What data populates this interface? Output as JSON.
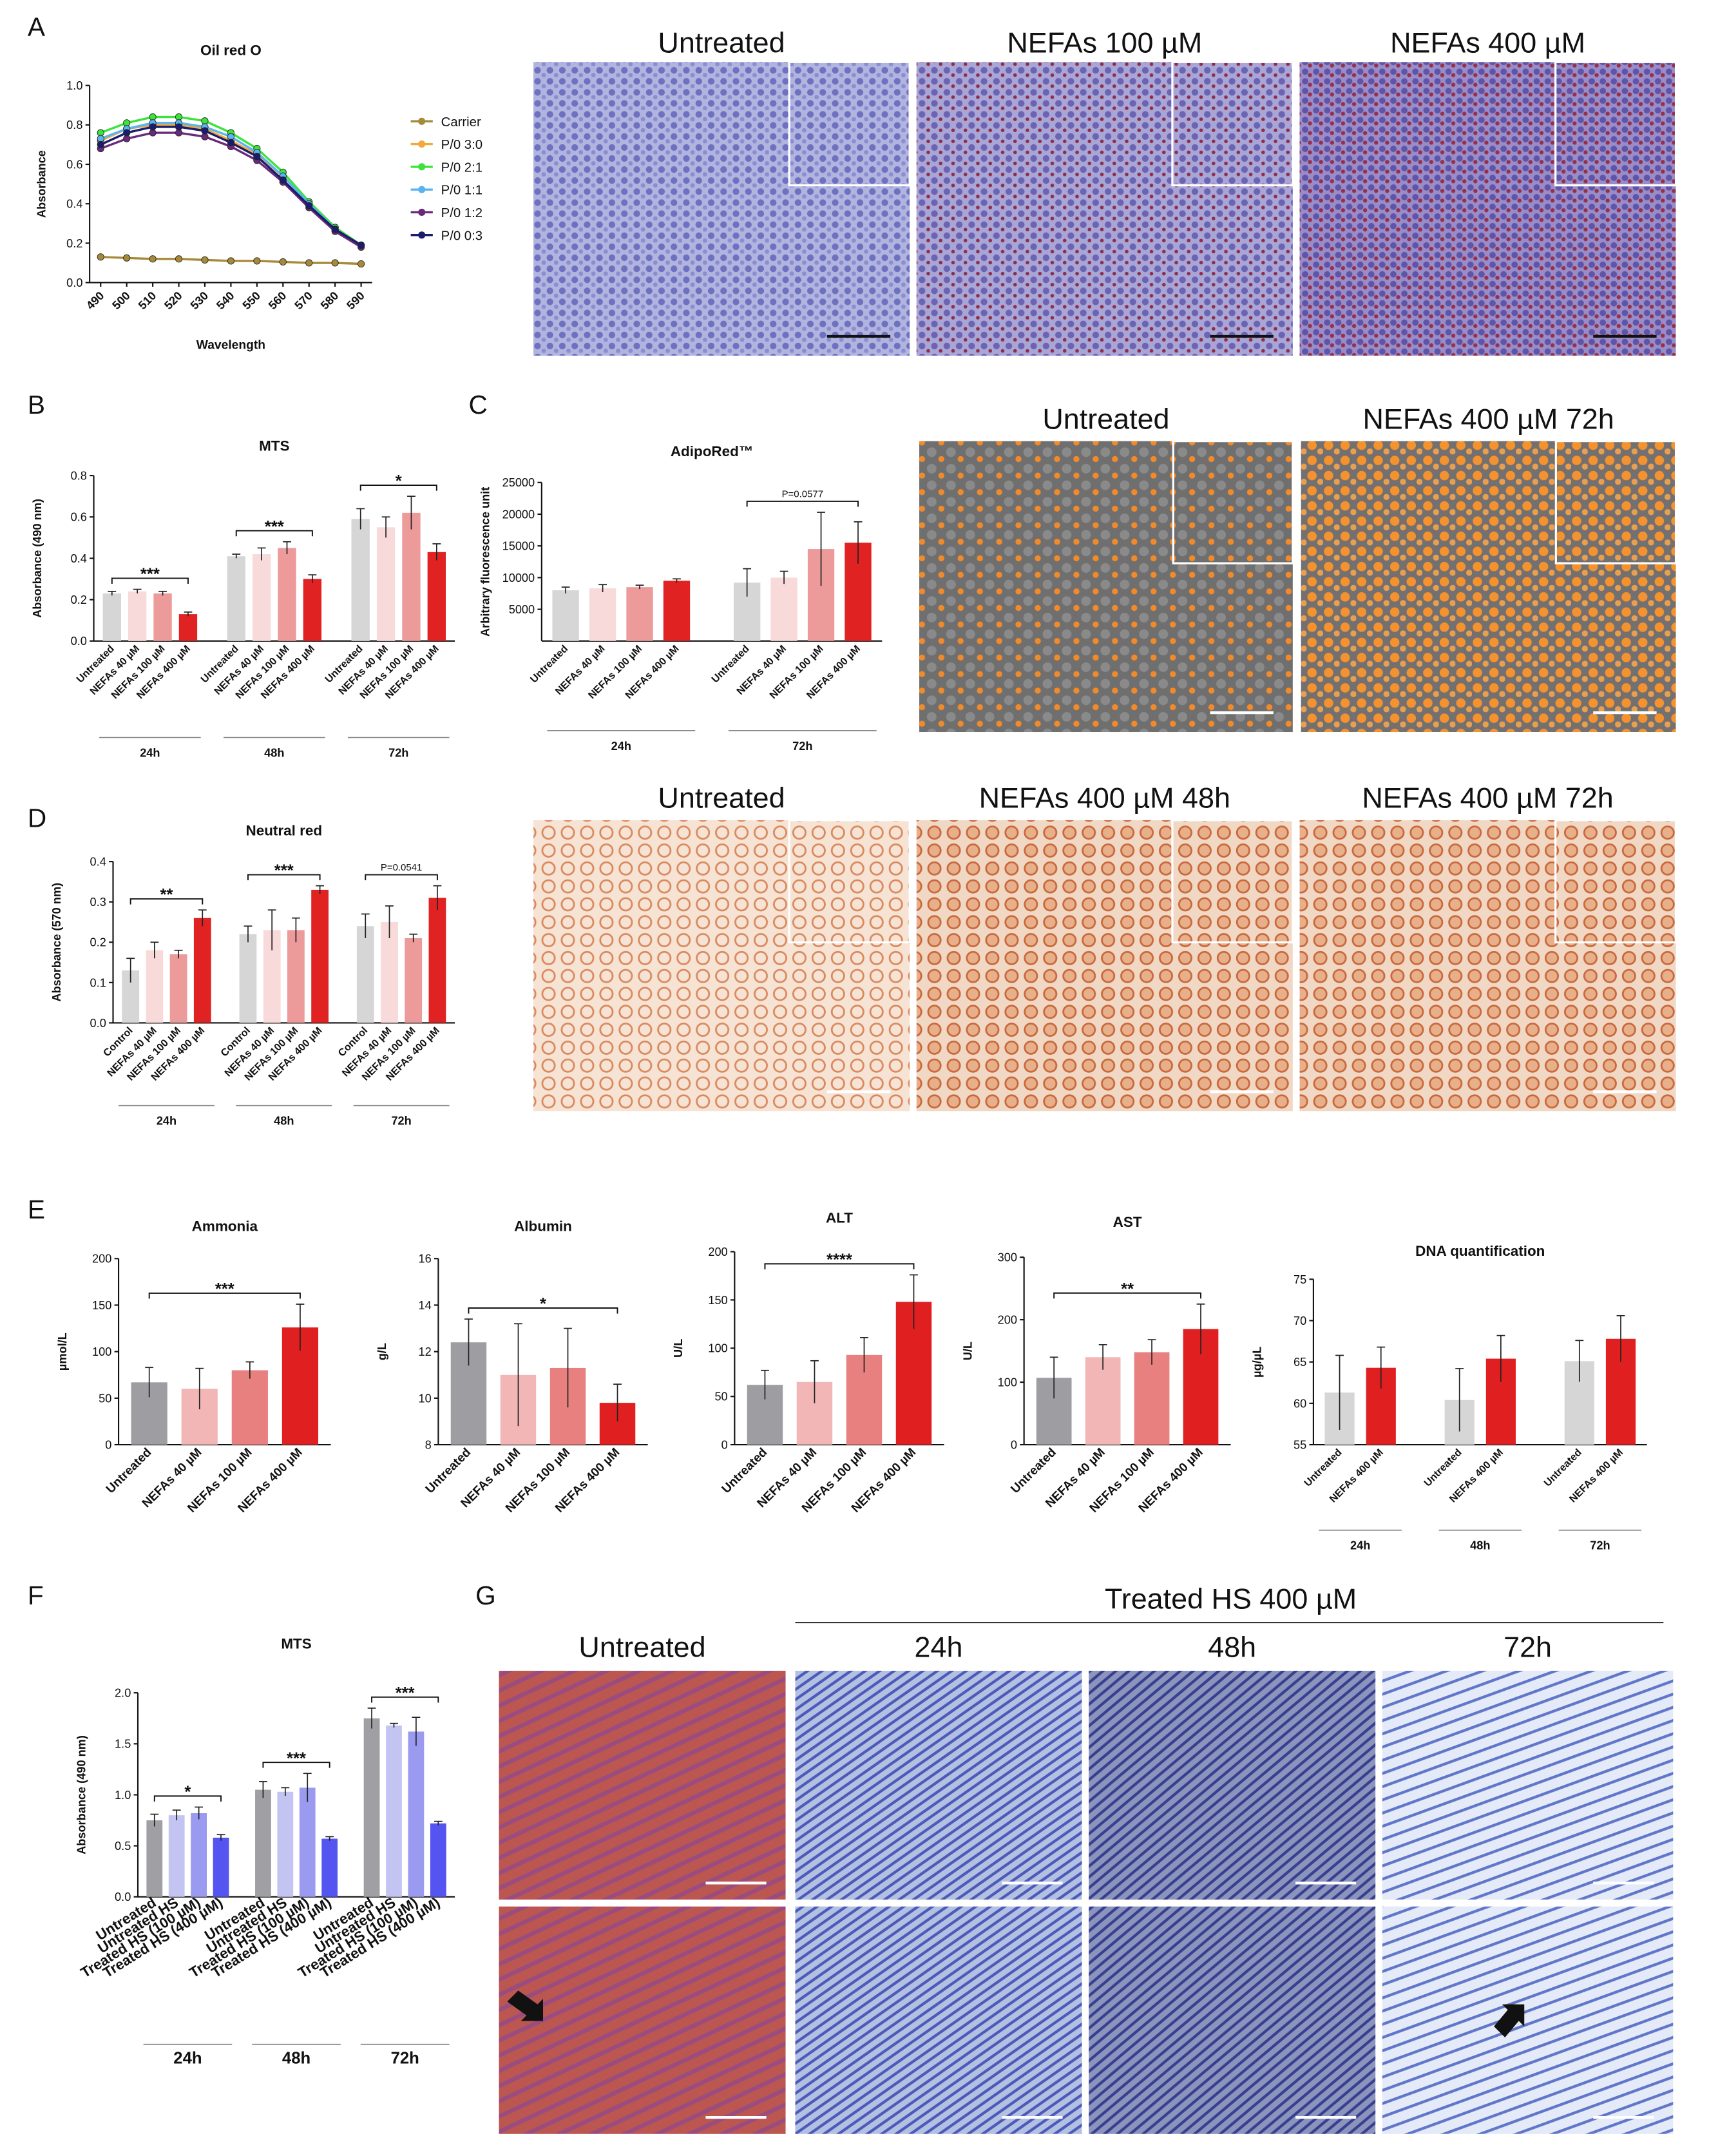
{
  "panels": [
    "A",
    "B",
    "C",
    "D",
    "E",
    "F",
    "G"
  ],
  "micrographs": [
    {
      "labels": [
        "Untreated",
        "NEFAs 100 µM",
        "NEFAs 400 µM"
      ]
    },
    {
      "labels": [
        "Untreated",
        "NEFAs 400 µM 72h"
      ]
    },
    {
      "labels": [
        "Untreated",
        "NEFAs 400 µM 48h",
        "NEFAs 400 µM 72h"
      ]
    },
    {
      "header": "Treated HS 400 µM",
      "labels": [
        "Untreated",
        "24h",
        "48h",
        "72h"
      ]
    }
  ],
  "chart_data": [
    {
      "type": "line",
      "title": "Oil red O",
      "xlabel": "Wavelength",
      "ylabel": "Absorbance",
      "legend": "right",
      "x": [
        490,
        500,
        510,
        520,
        530,
        540,
        550,
        560,
        570,
        580,
        590
      ],
      "xlim": [
        490,
        590
      ],
      "xticks": [
        490,
        500,
        510,
        520,
        530,
        540,
        550,
        560,
        570,
        580,
        590
      ],
      "ylim": [
        0,
        1
      ],
      "yticks": [
        {
          "value": 0,
          "label": "0.0"
        },
        {
          "value": 0.2,
          "label": "0.2"
        },
        {
          "value": 0.4,
          "label": "0.4"
        },
        {
          "value": 0.6,
          "label": "0.6"
        },
        {
          "value": 0.8,
          "label": "0.8"
        },
        {
          "value": 1,
          "label": "1.0"
        }
      ],
      "series": [
        {
          "name": "Carrier",
          "color": "#a68a3a",
          "values": [
            0.13,
            0.125,
            0.12,
            0.12,
            0.115,
            0.11,
            0.11,
            0.105,
            0.1,
            0.1,
            0.095
          ]
        },
        {
          "name": "P/0 3:0",
          "color": "#f2a93b",
          "values": [
            0.72,
            0.78,
            0.8,
            0.8,
            0.78,
            0.72,
            0.65,
            0.54,
            0.4,
            0.28,
            0.19
          ]
        },
        {
          "name": "P/0 2:1",
          "color": "#3ce33c",
          "values": [
            0.76,
            0.81,
            0.84,
            0.84,
            0.82,
            0.76,
            0.68,
            0.56,
            0.41,
            0.28,
            0.19
          ]
        },
        {
          "name": "P/0 1:1",
          "color": "#5ab4f0",
          "values": [
            0.73,
            0.78,
            0.81,
            0.81,
            0.79,
            0.74,
            0.66,
            0.54,
            0.4,
            0.27,
            0.19
          ]
        },
        {
          "name": "P/0 1:2",
          "color": "#6a2a7a",
          "values": [
            0.68,
            0.73,
            0.76,
            0.76,
            0.74,
            0.69,
            0.62,
            0.51,
            0.38,
            0.26,
            0.18
          ]
        },
        {
          "name": "P/0 0:3",
          "color": "#1c1c6e",
          "values": [
            0.7,
            0.76,
            0.79,
            0.79,
            0.77,
            0.71,
            0.64,
            0.52,
            0.39,
            0.27,
            0.19
          ]
        }
      ]
    },
    {
      "type": "bar",
      "title": "MTS",
      "ylabel": "Absorbance (490 nm)",
      "categories": [
        "Untreated",
        "NEFAs 40 µM",
        "NEFAs 100 µM",
        "NEFAs 400 µM",
        "Untreated",
        "NEFAs 40 µM",
        "NEFAs 100 µM",
        "NEFAs 400 µM",
        "Untreated",
        "NEFAs 40 µM",
        "NEFAs 100 µM",
        "NEFAs 400 µM"
      ],
      "values": [
        0.23,
        0.24,
        0.23,
        0.13,
        0.41,
        0.42,
        0.45,
        0.3,
        0.59,
        0.55,
        0.62,
        0.43
      ],
      "errors": [
        0.01,
        0.01,
        0.01,
        0.01,
        0.01,
        0.03,
        0.03,
        0.02,
        0.05,
        0.05,
        0.08,
        0.04
      ],
      "colors": [
        "#d6d6d6",
        "#f8dada",
        "#ec9a9a",
        "#e02222",
        "#d6d6d6",
        "#f8dada",
        "#ec9a9a",
        "#e02222",
        "#d6d6d6",
        "#f8dada",
        "#ec9a9a",
        "#e02222"
      ],
      "groups": [
        {
          "label": "24h",
          "significance": "***"
        },
        {
          "label": "48h",
          "significance": "***"
        },
        {
          "label": "72h",
          "significance": "*"
        }
      ],
      "ylim": [
        0,
        0.8
      ],
      "yticks": [
        {
          "value": 0,
          "label": "0.0"
        },
        {
          "value": 0.2,
          "label": "0.2"
        },
        {
          "value": 0.4,
          "label": "0.4"
        },
        {
          "value": 0.6,
          "label": "0.6"
        },
        {
          "value": 0.8,
          "label": "0.8"
        }
      ]
    },
    {
      "type": "bar",
      "title": "AdipoRed™",
      "ylabel": "Arbitrary fluorescence unit",
      "categories": [
        "Untreated",
        "NEFAs 40 µM",
        "NEFAs 100 µM",
        "NEFAs 400 µM",
        "Untreated",
        "NEFAs 40 µM",
        "NEFAs 100 µM",
        "NEFAs 400 µM"
      ],
      "values": [
        8000,
        8300,
        8500,
        9500,
        9200,
        10000,
        14500,
        15500
      ],
      "errors": [
        500,
        600,
        300,
        300,
        2200,
        1000,
        5800,
        3300
      ],
      "colors": [
        "#d6d6d6",
        "#f8dada",
        "#ec9a9a",
        "#e02222",
        "#d6d6d6",
        "#f8dada",
        "#ec9a9a",
        "#e02222"
      ],
      "groups": [
        {
          "label": "24h"
        },
        {
          "label": "72h",
          "significance": "P=0.0577"
        }
      ],
      "ylim": [
        0,
        25000
      ],
      "yticks": [
        5000,
        10000,
        15000,
        20000,
        25000
      ]
    },
    {
      "type": "bar",
      "title": "Neutral red",
      "ylabel": "Absorbance (570 nm)",
      "categories": [
        "Control",
        "NEFAs 40 µM",
        "NEFAs 100 µM",
        "NEFAs 400 µM",
        "Control",
        "NEFAs 40 µM",
        "NEFAs 100 µM",
        "NEFAs 400 µM",
        "Control",
        "NEFAs 40 µM",
        "NEFAs 100 µM",
        "NEFAs 400 µM"
      ],
      "values": [
        0.13,
        0.18,
        0.17,
        0.26,
        0.22,
        0.23,
        0.23,
        0.33,
        0.24,
        0.25,
        0.21,
        0.31
      ],
      "errors": [
        0.03,
        0.02,
        0.01,
        0.02,
        0.02,
        0.05,
        0.03,
        0.01,
        0.03,
        0.04,
        0.01,
        0.03
      ],
      "colors": [
        "#d6d6d6",
        "#f8dada",
        "#ec9a9a",
        "#e02222",
        "#d6d6d6",
        "#f8dada",
        "#ec9a9a",
        "#e02222",
        "#d6d6d6",
        "#f8dada",
        "#ec9a9a",
        "#e02222"
      ],
      "groups": [
        {
          "label": "24h",
          "significance": "**"
        },
        {
          "label": "48h",
          "significance": "***"
        },
        {
          "label": "72h",
          "significance": "P=0.0541"
        }
      ],
      "ylim": [
        0,
        0.4
      ],
      "yticks": [
        {
          "value": 0,
          "label": "0.0"
        },
        {
          "value": 0.1,
          "label": "0.1"
        },
        {
          "value": 0.2,
          "label": "0.2"
        },
        {
          "value": 0.3,
          "label": "0.3"
        },
        {
          "value": 0.4,
          "label": "0.4"
        }
      ]
    },
    {
      "type": "bar",
      "title": "Ammonia",
      "ylabel": "µmol/L",
      "significance": "***",
      "categories": [
        "Untreated",
        "NEFAs 40 µM",
        "NEFAs 100 µM",
        "NEFAs 400 µM"
      ],
      "values": [
        67,
        60,
        80,
        126
      ],
      "errors": [
        16,
        22,
        9,
        25
      ],
      "colors": [
        "#9e9ea2",
        "#f2b6b6",
        "#e88080",
        "#e02020"
      ],
      "ylim": [
        0,
        200
      ],
      "yticks": [
        0,
        50,
        100,
        150,
        200
      ]
    },
    {
      "type": "bar",
      "title": "Albumin",
      "ylabel": "g/L",
      "significance": "*",
      "categories": [
        "Untreated",
        "NEFAs 40 µM",
        "NEFAs 100 µM",
        "NEFAs 400 µM"
      ],
      "values": [
        12.4,
        11,
        11.3,
        9.8
      ],
      "errors": [
        1,
        2.2,
        1.7,
        0.8
      ],
      "colors": [
        "#9e9ea2",
        "#f2b6b6",
        "#e88080",
        "#e02020"
      ],
      "ylim": [
        8,
        16
      ],
      "yticks": [
        8,
        10,
        12,
        14,
        16
      ]
    },
    {
      "type": "bar",
      "title": "ALT",
      "ylabel": "U/L",
      "significance": "****",
      "categories": [
        "Untreated",
        "NEFAs 40 µM",
        "NEFAs 100 µM",
        "NEFAs 400 µM"
      ],
      "values": [
        62,
        65,
        93,
        148
      ],
      "errors": [
        15,
        22,
        18,
        28
      ],
      "colors": [
        "#9e9ea2",
        "#f2b6b6",
        "#e88080",
        "#e02020"
      ],
      "ylim": [
        0,
        200
      ],
      "yticks": [
        0,
        50,
        100,
        150,
        200
      ]
    },
    {
      "type": "bar",
      "title": "AST",
      "ylabel": "U/L",
      "significance": "**",
      "categories": [
        "Untreated",
        "NEFAs 40 µM",
        "NEFAs 100 µM",
        "NEFAs 400 µM"
      ],
      "values": [
        107,
        140,
        148,
        185
      ],
      "errors": [
        33,
        20,
        20,
        40
      ],
      "colors": [
        "#9e9ea2",
        "#f2b6b6",
        "#e88080",
        "#e02020"
      ],
      "ylim": [
        0,
        300
      ],
      "yticks": [
        0,
        100,
        200,
        300
      ]
    },
    {
      "type": "bar",
      "title": "DNA quantification",
      "ylabel": "µg/µL",
      "categories": [
        "Untreated",
        "NEFAs 400 µM",
        "Untreated",
        "NEFAs 400 µM",
        "Untreated",
        "NEFAs 400 µM"
      ],
      "values": [
        61.3,
        64.3,
        60.4,
        65.4,
        65.1,
        67.8
      ],
      "errors": [
        4.5,
        2.5,
        3.8,
        2.8,
        2.5,
        2.8
      ],
      "colors": [
        "#d6d6d6",
        "#e02020",
        "#d6d6d6",
        "#e02020",
        "#d6d6d6",
        "#e02020"
      ],
      "groups": [
        {
          "label": "24h"
        },
        {
          "label": "48h"
        },
        {
          "label": "72h"
        }
      ],
      "ylim": [
        55,
        75
      ],
      "yticks": [
        55,
        60,
        65,
        70,
        75
      ]
    },
    {
      "type": "bar",
      "title": "MTS",
      "ylabel": "Absorbance (490 nm)",
      "categories": [
        "Untreated",
        "Untreated HS",
        "Treated HS (100 µM)",
        "Treated HS (400 µM)",
        "Untreated",
        "Untreated HS",
        "Treated HS (100 µM)",
        "Treated HS (400 µM)",
        "Untreated",
        "Untreated HS",
        "Treated HS (100 µM)",
        "Treated HS (400 µM)"
      ],
      "values": [
        0.75,
        0.8,
        0.82,
        0.58,
        1.05,
        1.03,
        1.07,
        0.57,
        1.75,
        1.68,
        1.62,
        0.72
      ],
      "errors": [
        0.06,
        0.05,
        0.06,
        0.03,
        0.08,
        0.04,
        0.14,
        0.02,
        0.1,
        0.02,
        0.14,
        0.02
      ],
      "colors": [
        "#a0a0a4",
        "#c4c4f2",
        "#9a9af0",
        "#5454f0",
        "#a0a0a4",
        "#c4c4f2",
        "#9a9af0",
        "#5454f0",
        "#a0a0a4",
        "#c4c4f2",
        "#9a9af0",
        "#5454f0"
      ],
      "groups": [
        {
          "label": "24h",
          "significance": "*"
        },
        {
          "label": "48h",
          "significance": "***"
        },
        {
          "label": "72h",
          "significance": "***"
        }
      ],
      "ylim": [
        0,
        2
      ],
      "yticks": [
        {
          "value": 0,
          "label": "0.0"
        },
        {
          "value": 0.5,
          "label": "0.5"
        },
        {
          "value": 1,
          "label": "1.0"
        },
        {
          "value": 1.5,
          "label": "1.5"
        },
        {
          "value": 2,
          "label": "2.0"
        }
      ]
    }
  ]
}
